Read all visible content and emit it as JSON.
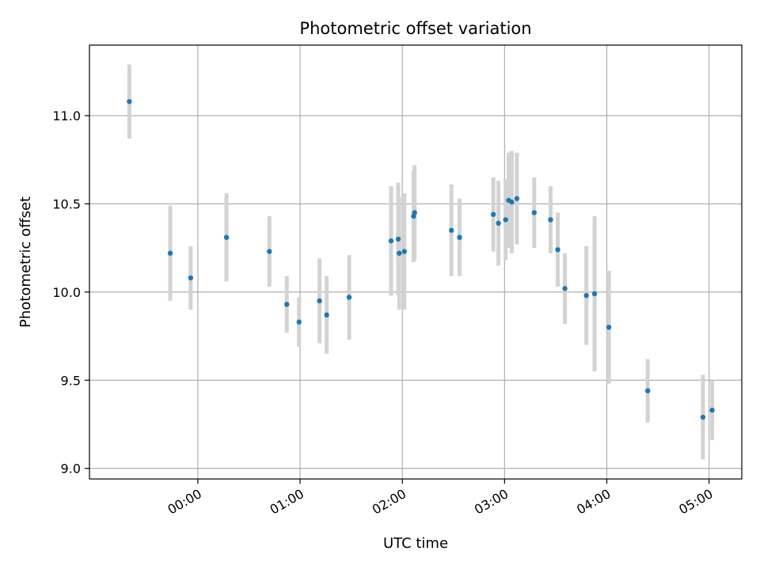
{
  "chart_data": {
    "type": "scatter",
    "title": "Photometric offset variation",
    "xlabel": "UTC time",
    "ylabel": "Photometric offset",
    "x_unit": "hours UTC",
    "xlim": [
      -1.06,
      5.32
    ],
    "ylim": [
      8.94,
      11.4
    ],
    "x_ticks": [
      0,
      1,
      2,
      3,
      4,
      5
    ],
    "x_tick_labels": [
      "00:00",
      "01:00",
      "02:00",
      "03:00",
      "04:00",
      "05:00"
    ],
    "y_ticks": [
      9.0,
      9.5,
      10.0,
      10.5,
      11.0
    ],
    "y_tick_labels": [
      "9.0",
      "9.5",
      "10.0",
      "10.5",
      "11.0"
    ],
    "grid": true,
    "colors": {
      "marker": "#1f77b4",
      "errorbar": "#d3d3d3",
      "grid": "#b0b0b0"
    },
    "points": [
      {
        "x": -0.67,
        "y": 11.08,
        "err": 0.21
      },
      {
        "x": -0.27,
        "y": 10.22,
        "err": 0.27
      },
      {
        "x": -0.07,
        "y": 10.08,
        "err": 0.18
      },
      {
        "x": 0.28,
        "y": 10.31,
        "err": 0.25
      },
      {
        "x": 0.7,
        "y": 10.23,
        "err": 0.2
      },
      {
        "x": 0.87,
        "y": 9.93,
        "err": 0.16
      },
      {
        "x": 0.99,
        "y": 9.83,
        "err": 0.14
      },
      {
        "x": 1.19,
        "y": 9.95,
        "err": 0.24
      },
      {
        "x": 1.26,
        "y": 9.87,
        "err": 0.22
      },
      {
        "x": 1.48,
        "y": 9.97,
        "err": 0.24
      },
      {
        "x": 1.89,
        "y": 10.29,
        "err": 0.31
      },
      {
        "x": 1.96,
        "y": 10.3,
        "err": 0.32
      },
      {
        "x": 1.97,
        "y": 10.22,
        "err": 0.32
      },
      {
        "x": 2.02,
        "y": 10.23,
        "err": 0.33
      },
      {
        "x": 2.11,
        "y": 10.43,
        "err": 0.26
      },
      {
        "x": 2.12,
        "y": 10.45,
        "err": 0.27
      },
      {
        "x": 2.48,
        "y": 10.35,
        "err": 0.26
      },
      {
        "x": 2.56,
        "y": 10.31,
        "err": 0.22
      },
      {
        "x": 2.89,
        "y": 10.44,
        "err": 0.21
      },
      {
        "x": 2.94,
        "y": 10.39,
        "err": 0.24
      },
      {
        "x": 3.01,
        "y": 10.41,
        "err": 0.23
      },
      {
        "x": 3.04,
        "y": 10.52,
        "err": 0.27
      },
      {
        "x": 3.07,
        "y": 10.51,
        "err": 0.29
      },
      {
        "x": 3.12,
        "y": 10.53,
        "err": 0.26
      },
      {
        "x": 3.29,
        "y": 10.45,
        "err": 0.2
      },
      {
        "x": 3.45,
        "y": 10.41,
        "err": 0.19
      },
      {
        "x": 3.52,
        "y": 10.24,
        "err": 0.21
      },
      {
        "x": 3.59,
        "y": 10.02,
        "err": 0.2
      },
      {
        "x": 3.8,
        "y": 9.98,
        "err": 0.28
      },
      {
        "x": 3.88,
        "y": 9.99,
        "err": 0.44
      },
      {
        "x": 4.02,
        "y": 9.8,
        "err": 0.32
      },
      {
        "x": 4.4,
        "y": 9.44,
        "err": 0.18
      },
      {
        "x": 4.94,
        "y": 9.29,
        "err": 0.24
      },
      {
        "x": 5.03,
        "y": 9.33,
        "err": 0.17
      }
    ]
  }
}
